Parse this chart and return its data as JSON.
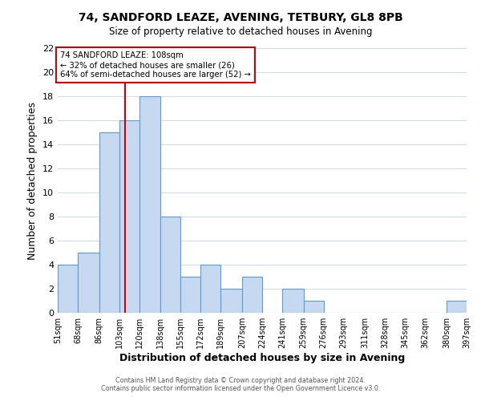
{
  "title": "74, SANDFORD LEAZE, AVENING, TETBURY, GL8 8PB",
  "subtitle": "Size of property relative to detached houses in Avening",
  "xlabel": "Distribution of detached houses by size in Avening",
  "ylabel": "Number of detached properties",
  "bin_edges": [
    51,
    68,
    86,
    103,
    120,
    138,
    155,
    172,
    189,
    207,
    224,
    241,
    259,
    276,
    293,
    311,
    328,
    345,
    362,
    380,
    397
  ],
  "counts": [
    4,
    5,
    15,
    16,
    18,
    8,
    3,
    4,
    2,
    3,
    0,
    2,
    1,
    0,
    0,
    0,
    0,
    0,
    0,
    1
  ],
  "bar_color": "#c6d9f0",
  "bar_edge_color": "#5b9bd5",
  "property_line_x": 108,
  "property_line_color": "#cc0000",
  "annotation_text": "74 SANDFORD LEAZE: 108sqm\n← 32% of detached houses are smaller (26)\n64% of semi-detached houses are larger (52) →",
  "annotation_box_color": "#ffffff",
  "annotation_box_edge_color": "#cc0000",
  "ylim": [
    0,
    22
  ],
  "tick_labels": [
    "51sqm",
    "68sqm",
    "86sqm",
    "103sqm",
    "120sqm",
    "138sqm",
    "155sqm",
    "172sqm",
    "189sqm",
    "207sqm",
    "224sqm",
    "241sqm",
    "259sqm",
    "276sqm",
    "293sqm",
    "311sqm",
    "328sqm",
    "345sqm",
    "362sqm",
    "380sqm",
    "397sqm"
  ],
  "footer1": "Contains HM Land Registry data © Crown copyright and database right 2024.",
  "footer2": "Contains public sector information licensed under the Open Government Licence v3.0.",
  "background_color": "#ffffff",
  "grid_color": "#d0dce8"
}
